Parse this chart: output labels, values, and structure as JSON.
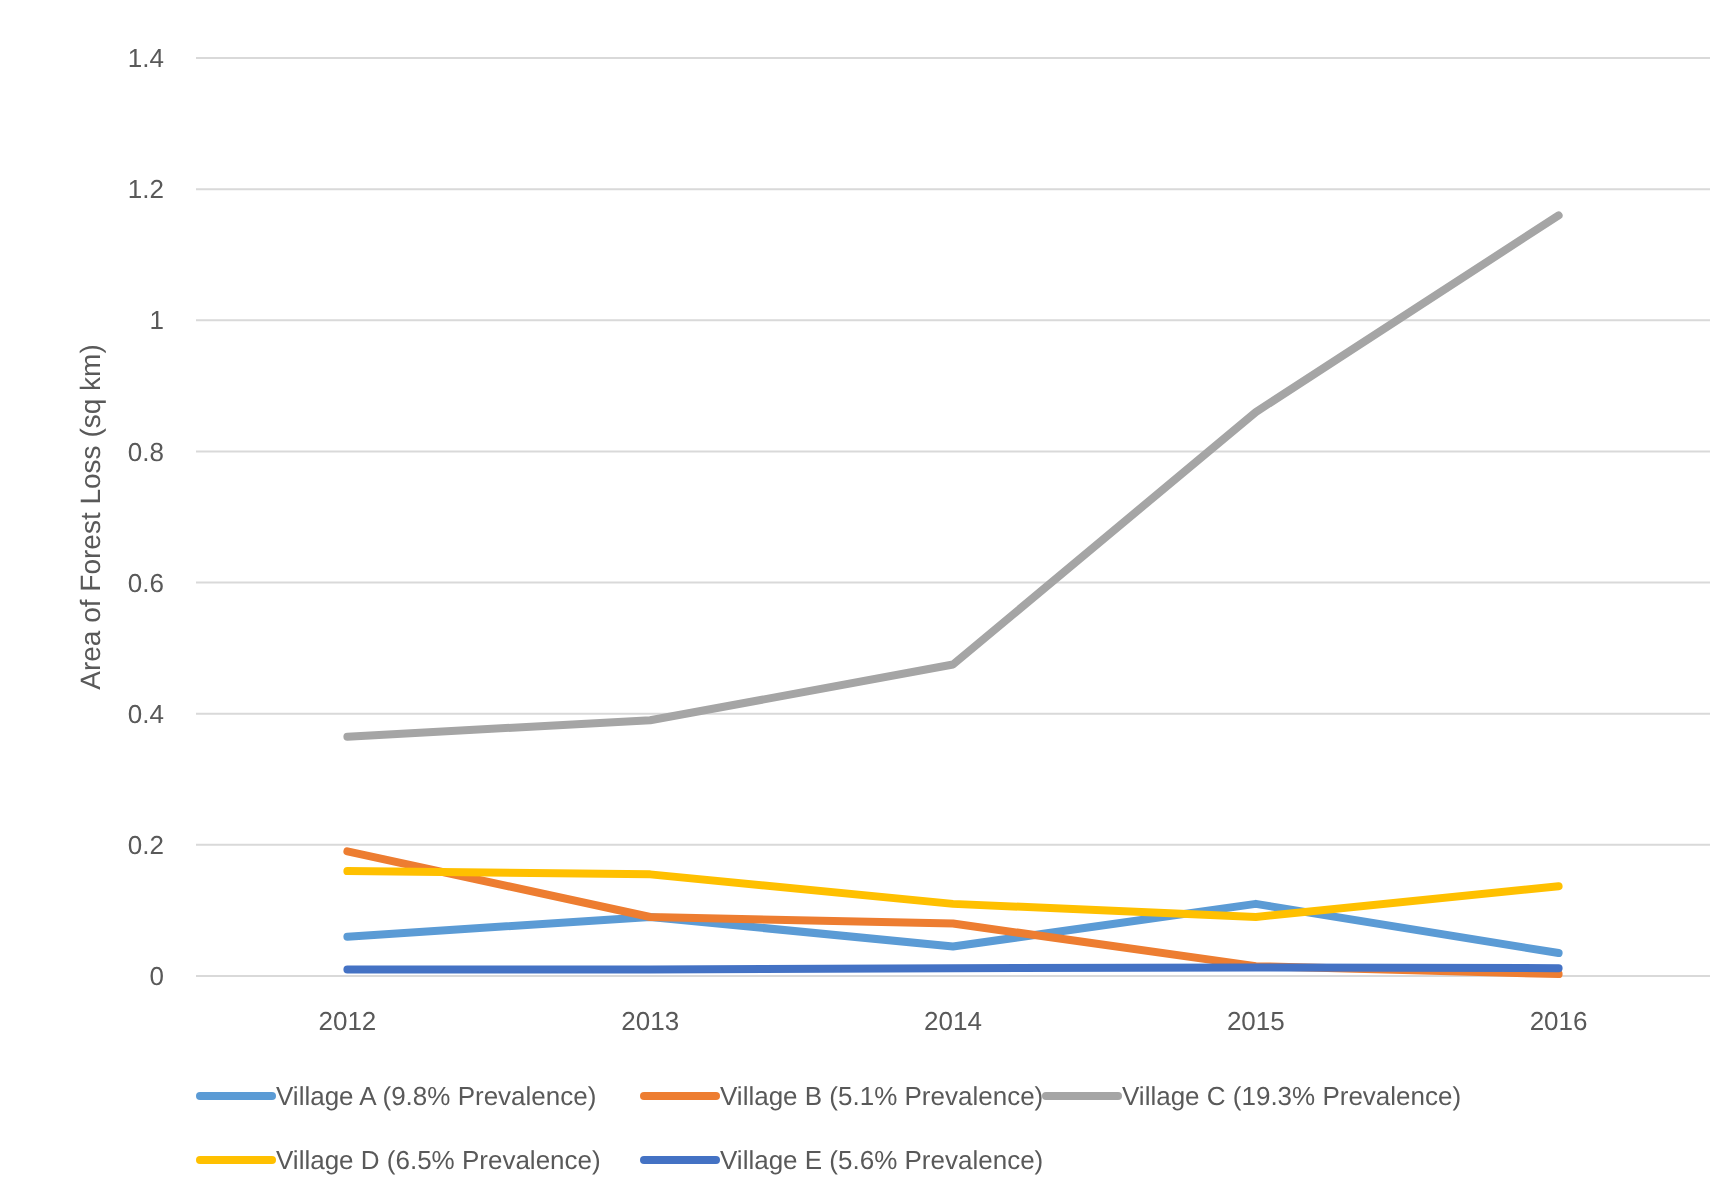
{
  "chart_data": {
    "type": "line",
    "ylabel": "Area of Forest Loss (sq km)",
    "categories": [
      "2012",
      "2013",
      "2014",
      "2015",
      "2016"
    ],
    "ylim": [
      0,
      1.4
    ],
    "yticks": [
      0,
      0.2,
      0.4,
      0.6,
      0.8,
      1,
      1.2,
      1.4
    ],
    "grid": "y",
    "legend": "bottom",
    "marker": "none",
    "line_style": "solid",
    "series": [
      {
        "name": "Village A (9.8% Prevalence)",
        "color": "#5b9bd5",
        "values": [
          0.06,
          0.09,
          0.045,
          0.11,
          0.035
        ]
      },
      {
        "name": "Village B (5.1% Prevalence)",
        "color": "#ed7d31",
        "values": [
          0.19,
          0.09,
          0.08,
          0.015,
          0.003
        ]
      },
      {
        "name": "Village C (19.3% Prevalence)",
        "color": "#a5a5a5",
        "values": [
          0.365,
          0.39,
          0.475,
          0.86,
          1.16
        ]
      },
      {
        "name": "Village D (6.5% Prevalence)",
        "color": "#ffc000",
        "values": [
          0.16,
          0.155,
          0.11,
          0.09,
          0.137
        ]
      },
      {
        "name": "Village E (5.6% Prevalence)",
        "color": "#4472c4",
        "values": [
          0.01,
          0.01,
          0.012,
          0.013,
          0.012
        ]
      }
    ]
  }
}
